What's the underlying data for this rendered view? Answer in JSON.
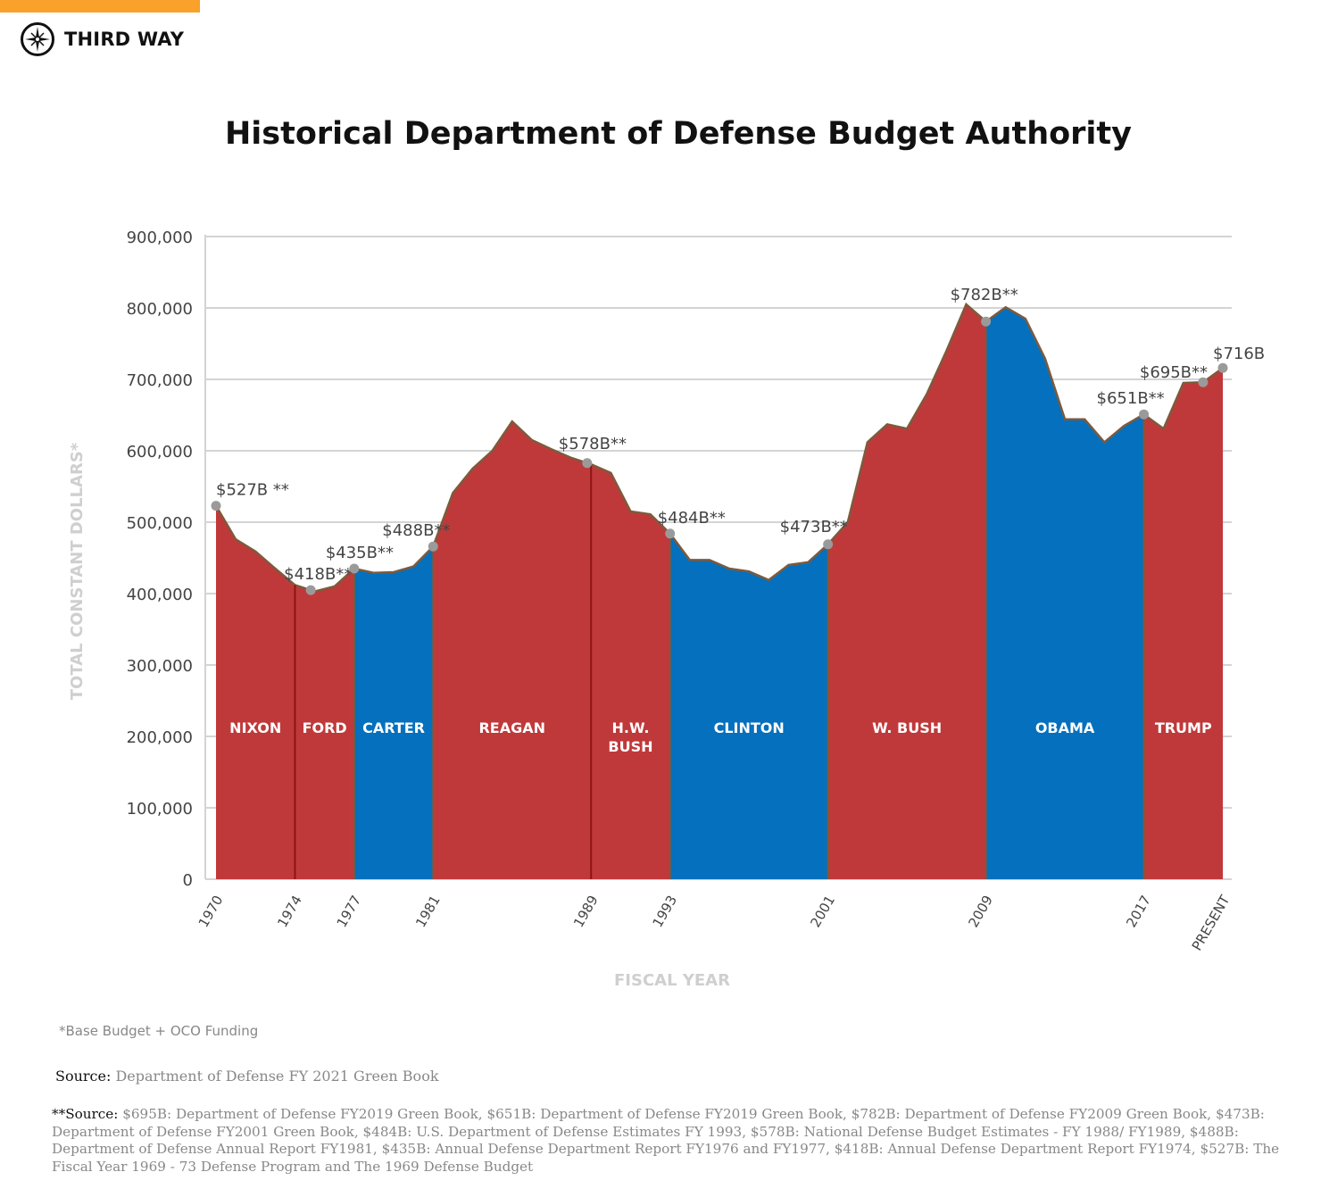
{
  "header": {
    "brand": "THIRD WAY",
    "brand_color": "#f9a12a",
    "logo_icon": "compass-star-icon"
  },
  "chart_data": {
    "type": "area",
    "title": "Historical Department of Defense Budget Authority",
    "xlabel": "FISCAL YEAR",
    "ylabel": "TOTAL CONSTANT DOLLARS*",
    "ylim": [
      0,
      900000
    ],
    "xlim": [
      1970,
      2021
    ],
    "grid": true,
    "yticks": [
      "0",
      "100,000",
      "200,000",
      "300,000",
      "400,000",
      "500,000",
      "600,000",
      "700,000",
      "800,000",
      "900,000"
    ],
    "xticks": [
      {
        "year": 1970,
        "label": "1970"
      },
      {
        "year": 1974,
        "label": "1974"
      },
      {
        "year": 1977,
        "label": "1977"
      },
      {
        "year": 1981,
        "label": "1981"
      },
      {
        "year": 1989,
        "label": "1989"
      },
      {
        "year": 1993,
        "label": "1993"
      },
      {
        "year": 2001,
        "label": "2001"
      },
      {
        "year": 2009,
        "label": "2009"
      },
      {
        "year": 2017,
        "label": "2017"
      },
      {
        "year": 2021,
        "label": "PRESENT"
      }
    ],
    "x": [
      1970,
      1971,
      1972,
      1973,
      1974,
      1975,
      1976,
      1977,
      1978,
      1979,
      1980,
      1981,
      1982,
      1983,
      1984,
      1985,
      1986,
      1987,
      1988,
      1989,
      1990,
      1991,
      1992,
      1993,
      1994,
      1995,
      1996,
      1997,
      1998,
      1999,
      2000,
      2001,
      2002,
      2003,
      2004,
      2005,
      2006,
      2007,
      2008,
      2009,
      2010,
      2011,
      2012,
      2013,
      2014,
      2015,
      2016,
      2017,
      2018,
      2019,
      2020,
      2021
    ],
    "values": [
      523000,
      476000,
      459000,
      435000,
      412000,
      403000,
      410000,
      435000,
      429000,
      430000,
      438000,
      466000,
      541000,
      575000,
      600000,
      641000,
      615000,
      602000,
      590000,
      581000,
      569000,
      515000,
      511000,
      484000,
      447000,
      447000,
      435000,
      431000,
      419000,
      440000,
      444000,
      469000,
      500000,
      612000,
      637000,
      631000,
      679000,
      740000,
      805000,
      781000,
      801000,
      785000,
      729000,
      644000,
      644000,
      612000,
      635000,
      651000,
      631000,
      695000,
      696000,
      716000
    ],
    "colors": {
      "republican": "#c0393a",
      "democrat": "#0570bd",
      "outline": "#7d5a3c"
    },
    "presidencies": [
      {
        "name": "NIXON",
        "start": 1970,
        "end": 1974,
        "party": "republican"
      },
      {
        "name": "FORD",
        "start": 1974,
        "end": 1977,
        "party": "republican"
      },
      {
        "name": "CARTER",
        "start": 1977,
        "end": 1981,
        "party": "democrat"
      },
      {
        "name": "REAGAN",
        "start": 1981,
        "end": 1989,
        "party": "republican"
      },
      {
        "name": "H.W. BUSH",
        "start": 1989,
        "end": 1993,
        "party": "republican"
      },
      {
        "name": "CLINTON",
        "start": 1993,
        "end": 2001,
        "party": "democrat"
      },
      {
        "name": "W. BUSH",
        "start": 2001,
        "end": 2009,
        "party": "republican"
      },
      {
        "name": "OBAMA",
        "start": 2009,
        "end": 2017,
        "party": "democrat"
      },
      {
        "name": "TRUMP",
        "start": 2017,
        "end": 2021,
        "party": "republican"
      }
    ],
    "annotations": [
      {
        "year": 1970,
        "label": "$527B **"
      },
      {
        "year": 1974.8,
        "label": "$418B**"
      },
      {
        "year": 1977,
        "label": "$435B**"
      },
      {
        "year": 1981,
        "label": "$488B**"
      },
      {
        "year": 1988.8,
        "label": "$578B**"
      },
      {
        "year": 1993,
        "label": "$484B**"
      },
      {
        "year": 2001,
        "label": "$473B**"
      },
      {
        "year": 2009,
        "label": "$782B**"
      },
      {
        "year": 2017,
        "label": "$651B**"
      },
      {
        "year": 2020,
        "label": "$695B**"
      },
      {
        "year": 2021,
        "label": "$716B"
      }
    ]
  },
  "footnotes": {
    "asterisk": "*Base Budget + OCO Funding",
    "source_label": "Source:",
    "source_text": "Department of Defense FY 2021 Green Book",
    "source2_label": "**Source:",
    "source2_text": "$695B: Department of Defense FY2019 Green Book, $651B: Department of Defense FY2019 Green Book, $782B: Department of Defense FY2009 Green Book, $473B: Department of Defense FY2001 Green Book, $484B: U.S. Department of Defense Estimates FY 1993, $578B: National Defense Budget Estimates - FY 1988/ FY1989, $488B: Department of Defense Annual Report FY1981, $435B: Annual Defense Department Report FY1976 and FY1977, $418B: Annual Defense Department Report FY1974, $527B: The Fiscal Year 1969 - 73 Defense Program and The 1969 Defense Budget"
  }
}
